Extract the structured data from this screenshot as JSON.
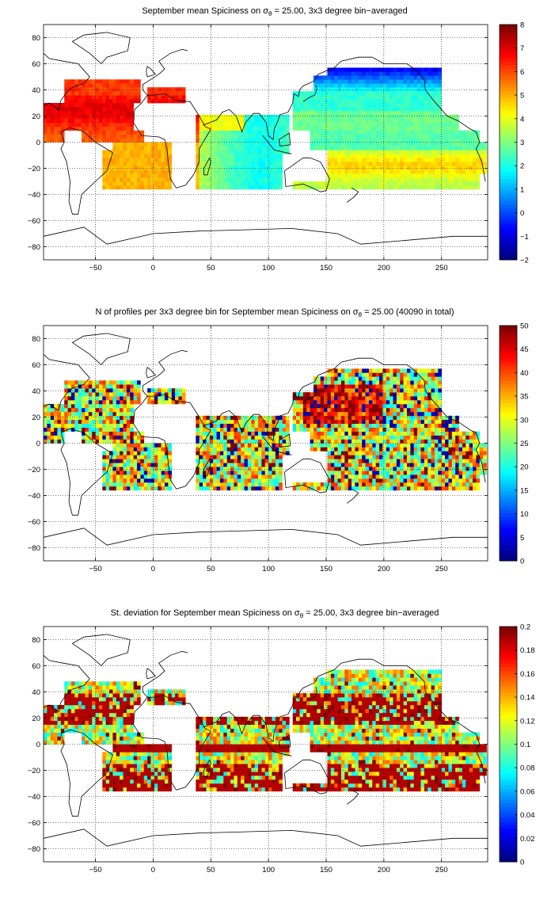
{
  "colors": {
    "jet_low": "#00008f",
    "jet_mid": "#80ff80",
    "jet_high": "#800000",
    "land": "#ffffff",
    "coast": "#000000",
    "grid": "#000000"
  },
  "chart_data": [
    {
      "type": "heatmap",
      "title": {
        "prefix": "September mean Spiciness on ",
        "symbol": "σ",
        "subscript": "θ",
        "suffix": " = 25.00, 3x3 degree bin−averaged"
      },
      "xlim": [
        -95,
        290
      ],
      "ylim": [
        -90,
        90
      ],
      "x_ticks": [
        -50,
        0,
        50,
        100,
        150,
        200,
        250
      ],
      "y_ticks": [
        80,
        60,
        40,
        20,
        0,
        -20,
        -40,
        -60,
        -80
      ],
      "x_tick_labels": [
        "−50",
        "0",
        "50",
        "100",
        "150",
        "200",
        "250"
      ],
      "y_tick_labels": [
        "80",
        "60",
        "40",
        "20",
        "0",
        "−20",
        "−40",
        "−60",
        "−80"
      ],
      "grid": true,
      "colorbar": {
        "min": -2,
        "max": 8,
        "ticks": [
          -2,
          -1,
          0,
          1,
          2,
          3,
          4,
          5,
          6,
          7,
          8
        ],
        "tick_labels": [
          "−2",
          "−1",
          "0",
          "1",
          "2",
          "3",
          "4",
          "5",
          "6",
          "7",
          "8"
        ],
        "colormap": "jet"
      },
      "field_description": "values ~5-7 (orange/red) in North & South Atlantic subtropics, ~2-4 (cyan/green) in Indian Ocean and tropical Pacific, ~4.5-5.5 in South Pacific subtropics, ~-1 to 1 (blue) in North Pacific north of 40N"
    },
    {
      "type": "heatmap",
      "title": {
        "prefix": "N of profiles per 3x3 degree bin for September mean Spiciness on ",
        "symbol": "σ",
        "subscript": "θ",
        "suffix": " = 25.00 (40090 in total)"
      },
      "xlim": [
        -95,
        290
      ],
      "ylim": [
        -90,
        90
      ],
      "x_ticks": [
        -50,
        0,
        50,
        100,
        150,
        200,
        250
      ],
      "y_ticks": [
        80,
        60,
        40,
        20,
        0,
        -20,
        -40,
        -60,
        -80
      ],
      "x_tick_labels": [
        "−50",
        "0",
        "50",
        "100",
        "150",
        "200",
        "250"
      ],
      "y_tick_labels": [
        "80",
        "60",
        "40",
        "20",
        "0",
        "−20",
        "−40",
        "−60",
        "−80"
      ],
      "grid": true,
      "total_profiles": 40090,
      "colorbar": {
        "min": 0,
        "max": 50,
        "ticks": [
          0,
          5,
          10,
          15,
          20,
          25,
          30,
          35,
          40,
          45,
          50
        ],
        "tick_labels": [
          "0",
          "5",
          "10",
          "15",
          "20",
          "25",
          "30",
          "35",
          "40",
          "45",
          "50"
        ],
        "colormap": "jet"
      }
    },
    {
      "type": "heatmap",
      "title": {
        "prefix": "St. deviation for September mean Spiciness on ",
        "symbol": "σ",
        "subscript": "θ",
        "suffix": " = 25.00, 3x3 degree bin−averaged"
      },
      "xlim": [
        -95,
        290
      ],
      "ylim": [
        -90,
        90
      ],
      "x_ticks": [
        -50,
        0,
        50,
        100,
        150,
        200,
        250
      ],
      "y_ticks": [
        80,
        60,
        40,
        20,
        0,
        -20,
        -40,
        -60,
        -80
      ],
      "x_tick_labels": [
        "−50",
        "0",
        "50",
        "100",
        "150",
        "200",
        "250"
      ],
      "y_tick_labels": [
        "80",
        "60",
        "40",
        "20",
        "0",
        "−20",
        "−40",
        "−60",
        "−80"
      ],
      "grid": true,
      "colorbar": {
        "min": 0,
        "max": 0.2,
        "ticks": [
          0,
          0.02,
          0.04,
          0.06,
          0.08,
          0.1,
          0.12,
          0.14,
          0.16,
          0.18,
          0.2
        ],
        "tick_labels": [
          "0",
          "0.02",
          "0.04",
          "0.06",
          "0.08",
          "0.1",
          "0.12",
          "0.14",
          "0.16",
          "0.18",
          "0.2"
        ],
        "colormap": "jet"
      }
    }
  ]
}
